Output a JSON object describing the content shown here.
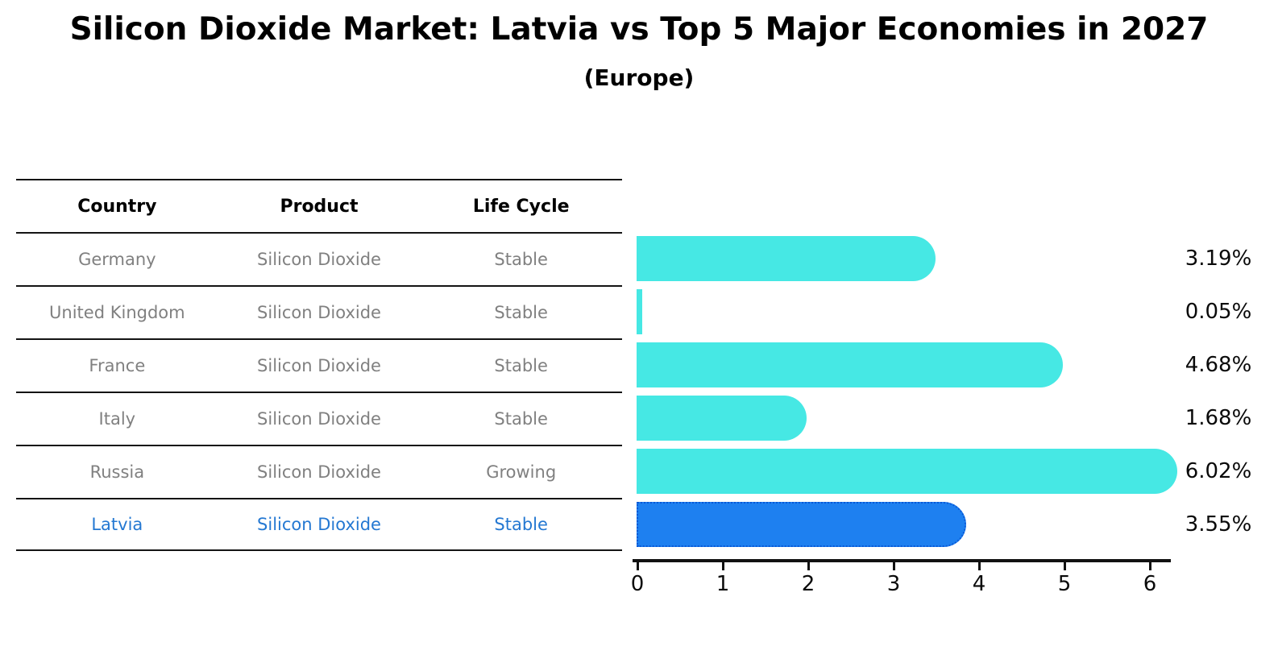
{
  "title": "Silicon Dioxide Market: Latvia vs Top 5 Major Economies in 2027",
  "subtitle": "(Europe)",
  "table": {
    "headers": [
      "Country",
      "Product",
      "Life Cycle"
    ],
    "rows": [
      {
        "country": "Germany",
        "product": "Silicon Dioxide",
        "life_cycle": "Stable",
        "highlighted": false
      },
      {
        "country": "United Kingdom",
        "product": "Silicon Dioxide",
        "life_cycle": "Stable",
        "highlighted": false
      },
      {
        "country": "France",
        "product": "Silicon Dioxide",
        "life_cycle": "Stable",
        "highlighted": false
      },
      {
        "country": "Italy",
        "product": "Silicon Dioxide",
        "life_cycle": "Stable",
        "highlighted": false
      },
      {
        "country": "Russia",
        "product": "Silicon Dioxide",
        "life_cycle": "Growing",
        "highlighted": false
      },
      {
        "country": "Latvia",
        "product": "Silicon Dioxide",
        "life_cycle": "Stable",
        "highlighted": true
      }
    ]
  },
  "chart_data": {
    "type": "bar",
    "orientation": "horizontal",
    "title": "Silicon Dioxide Market: Latvia vs Top 5 Major Economies in 2027 (Europe)",
    "categories": [
      "Germany",
      "United Kingdom",
      "France",
      "Italy",
      "Russia",
      "Latvia"
    ],
    "values": [
      3.19,
      0.05,
      4.68,
      1.68,
      6.02,
      3.55
    ],
    "value_labels": [
      "3.19%",
      "0.05%",
      "4.68%",
      "1.68%",
      "6.02%",
      "3.55%"
    ],
    "xlabel": "",
    "ylabel": "",
    "xticks": [
      "0",
      "1",
      "2",
      "3",
      "4",
      "5",
      "6"
    ],
    "xlim": [
      0,
      6.3
    ],
    "grid": false,
    "legend": "none",
    "bar_color": "#46e8e4",
    "highlight_color": "#1e80f0",
    "highlight_border_color": "#0a58d6",
    "highlight_index": 5,
    "unit": "%"
  }
}
